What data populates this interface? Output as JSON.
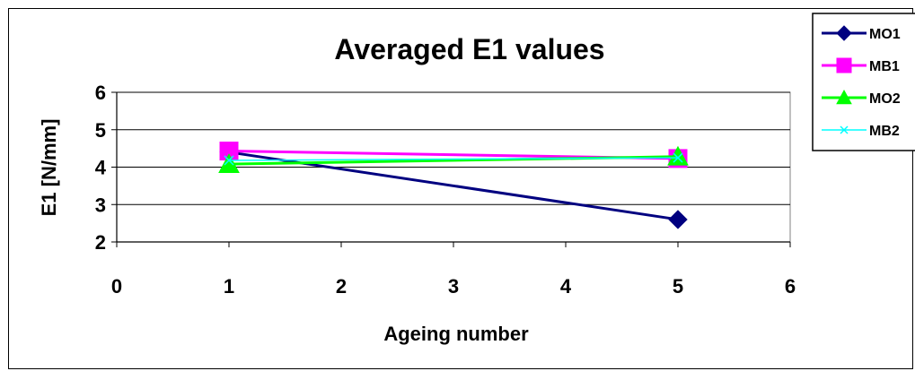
{
  "chart_data": {
    "type": "line",
    "title": "Averaged E1 values",
    "xlabel": "Ageing number",
    "ylabel": "E1 [N/mm]",
    "xlim": [
      0,
      6
    ],
    "ylim": [
      2,
      6
    ],
    "xticks": [
      0,
      1,
      2,
      3,
      4,
      5,
      6
    ],
    "yticks": [
      2,
      3,
      4,
      5,
      6
    ],
    "grid": "horizontal",
    "legend_position": "top-right",
    "series": [
      {
        "name": "MO1",
        "color": "#000080",
        "marker": "diamond",
        "x": [
          1,
          5
        ],
        "values": [
          4.4,
          2.6
        ]
      },
      {
        "name": "MB1",
        "color": "#FF00FF",
        "marker": "square",
        "x": [
          1,
          5
        ],
        "values": [
          4.43,
          4.23
        ]
      },
      {
        "name": "MO2",
        "color": "#00FF00",
        "marker": "triangle",
        "x": [
          1,
          5
        ],
        "values": [
          4.08,
          4.28
        ]
      },
      {
        "name": "MB2",
        "color": "#00FFFF",
        "marker": "x",
        "x": [
          1,
          5
        ],
        "values": [
          4.18,
          4.25
        ]
      }
    ]
  }
}
